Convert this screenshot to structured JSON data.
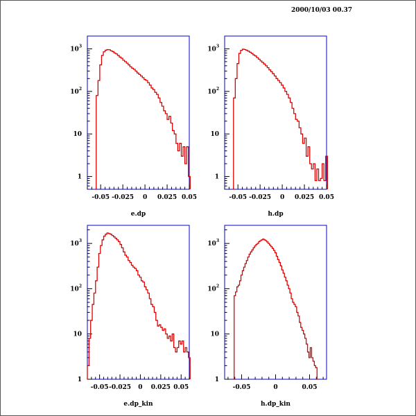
{
  "timestamp": "2000/10/03  00.37",
  "chart_data": [
    {
      "type": "line",
      "xlabel": "e.dp",
      "xlim": [
        -0.065,
        0.05
      ],
      "ylim_log10": [
        -0.3,
        3.3
      ],
      "xticks": [
        {
          "v": -0.05,
          "t": "-0.05"
        },
        {
          "v": -0.025,
          "t": "-0.025"
        },
        {
          "v": 0,
          "t": "0"
        },
        {
          "v": 0.025,
          "t": "0.025"
        },
        {
          "v": 0.05,
          "t": "0.05"
        }
      ],
      "yticks": [
        {
          "v": 1,
          "t": "1"
        },
        {
          "v": 10,
          "t": "10"
        },
        {
          "v": 100,
          "t": "10",
          "sup": "2"
        },
        {
          "v": 1000,
          "t": "10",
          "sup": "3"
        }
      ],
      "x": [
        -0.054,
        -0.052,
        -0.05,
        -0.048,
        -0.046,
        -0.044,
        -0.042,
        -0.04,
        -0.038,
        -0.036,
        -0.034,
        -0.032,
        -0.03,
        -0.028,
        -0.026,
        -0.024,
        -0.022,
        -0.02,
        -0.018,
        -0.016,
        -0.014,
        -0.012,
        -0.01,
        -0.008,
        -0.006,
        -0.004,
        -0.002,
        0,
        0.002,
        0.004,
        0.006,
        0.008,
        0.01,
        0.012,
        0.014,
        0.016,
        0.018,
        0.02,
        0.022,
        0.024,
        0.026,
        0.028,
        0.03,
        0.032,
        0.034,
        0.036,
        0.038,
        0.04,
        0.042,
        0.044,
        0.046,
        0.048,
        0.05
      ],
      "values": [
        80,
        180,
        420,
        700,
        850,
        930,
        960,
        950,
        900,
        860,
        800,
        760,
        700,
        640,
        600,
        540,
        500,
        460,
        420,
        380,
        350,
        330,
        300,
        270,
        250,
        230,
        210,
        190,
        180,
        160,
        140,
        120,
        110,
        95,
        85,
        70,
        55,
        45,
        35,
        30,
        22,
        26,
        18,
        12,
        10,
        6,
        4,
        6,
        3,
        5,
        2,
        5,
        1
      ]
    },
    {
      "type": "line",
      "xlabel": "h.dp",
      "xlim": [
        -0.065,
        0.05
      ],
      "ylim_log10": [
        -0.3,
        3.3
      ],
      "xticks": [
        {
          "v": -0.05,
          "t": "-0.05"
        },
        {
          "v": -0.025,
          "t": "-0.025"
        },
        {
          "v": 0,
          "t": "0"
        },
        {
          "v": 0.025,
          "t": "0.025"
        },
        {
          "v": 0.05,
          "t": "0.05"
        }
      ],
      "yticks": [
        {
          "v": 1,
          "t": "1"
        },
        {
          "v": 10,
          "t": "10"
        },
        {
          "v": 100,
          "t": "10",
          "sup": "2"
        },
        {
          "v": 1000,
          "t": "10",
          "sup": "3"
        }
      ],
      "x": [
        -0.054,
        -0.052,
        -0.05,
        -0.048,
        -0.046,
        -0.044,
        -0.042,
        -0.04,
        -0.038,
        -0.036,
        -0.034,
        -0.032,
        -0.03,
        -0.028,
        -0.026,
        -0.024,
        -0.022,
        -0.02,
        -0.018,
        -0.016,
        -0.014,
        -0.012,
        -0.01,
        -0.008,
        -0.006,
        -0.004,
        -0.002,
        0,
        0.002,
        0.004,
        0.006,
        0.008,
        0.01,
        0.012,
        0.014,
        0.016,
        0.018,
        0.02,
        0.022,
        0.024,
        0.026,
        0.028,
        0.03,
        0.032,
        0.034,
        0.036,
        0.038,
        0.04,
        0.042,
        0.044,
        0.046,
        0.048,
        0.05
      ],
      "values": [
        70,
        200,
        450,
        780,
        920,
        980,
        960,
        930,
        880,
        830,
        780,
        720,
        680,
        620,
        570,
        520,
        480,
        440,
        400,
        360,
        320,
        290,
        260,
        230,
        200,
        180,
        160,
        140,
        120,
        100,
        85,
        70,
        55,
        40,
        30,
        22,
        20,
        14,
        10,
        6,
        8,
        3,
        5,
        2,
        1.5,
        2,
        0.8,
        1.5,
        0.8,
        0.9,
        2,
        0.8,
        3
      ]
    },
    {
      "type": "line",
      "xlabel": "e.dp_kin",
      "xlim": [
        -0.065,
        0.06
      ],
      "ylim_log10": [
        0,
        3.4
      ],
      "xticks": [
        {
          "v": -0.05,
          "t": "-0.05"
        },
        {
          "v": -0.025,
          "t": "-0.025"
        },
        {
          "v": 0,
          "t": "0"
        },
        {
          "v": 0.025,
          "t": "0.025"
        },
        {
          "v": 0.05,
          "t": "0.05"
        }
      ],
      "yticks": [
        {
          "v": 1,
          "t": "1"
        },
        {
          "v": 10,
          "t": "10"
        },
        {
          "v": 100,
          "t": "10",
          "sup": "2"
        },
        {
          "v": 1000,
          "t": "10",
          "sup": "3"
        }
      ],
      "x": [
        -0.064,
        -0.062,
        -0.06,
        -0.058,
        -0.056,
        -0.054,
        -0.052,
        -0.05,
        -0.048,
        -0.046,
        -0.044,
        -0.042,
        -0.04,
        -0.038,
        -0.036,
        -0.034,
        -0.032,
        -0.03,
        -0.028,
        -0.026,
        -0.024,
        -0.022,
        -0.02,
        -0.018,
        -0.016,
        -0.014,
        -0.012,
        -0.01,
        -0.008,
        -0.006,
        -0.004,
        -0.002,
        0,
        0.002,
        0.004,
        0.006,
        0.008,
        0.01,
        0.012,
        0.014,
        0.016,
        0.018,
        0.02,
        0.022,
        0.024,
        0.026,
        0.028,
        0.03,
        0.032,
        0.034,
        0.036,
        0.038,
        0.04,
        0.042,
        0.044,
        0.046,
        0.048,
        0.05,
        0.052,
        0.054,
        0.056,
        0.058,
        0.06
      ],
      "values": [
        2,
        8,
        20,
        45,
        80,
        150,
        300,
        600,
        900,
        1200,
        1450,
        1600,
        1700,
        1650,
        1600,
        1500,
        1400,
        1300,
        1200,
        1100,
        950,
        800,
        650,
        550,
        500,
        420,
        380,
        330,
        300,
        280,
        250,
        200,
        180,
        150,
        140,
        110,
        95,
        80,
        60,
        45,
        40,
        30,
        20,
        15,
        16,
        14,
        12,
        13,
        10,
        8,
        9,
        7,
        10,
        5,
        4,
        5,
        7,
        6,
        7,
        4,
        5,
        4,
        3
      ]
    },
    {
      "type": "line",
      "xlabel": "h.dp_kin",
      "xlim": [
        -0.075,
        0.075
      ],
      "ylim_log10": [
        0,
        3.4
      ],
      "xticks": [
        {
          "v": -0.05,
          "t": "-0.05"
        },
        {
          "v": 0,
          "t": "0"
        },
        {
          "v": 0.05,
          "t": "0.05"
        }
      ],
      "yticks": [
        {
          "v": 1,
          "t": "1"
        },
        {
          "v": 10,
          "t": "10"
        },
        {
          "v": 100,
          "t": "10",
          "sup": "2"
        },
        {
          "v": 1000,
          "t": "10",
          "sup": "3"
        }
      ],
      "x": [
        -0.062,
        -0.06,
        -0.058,
        -0.056,
        -0.054,
        -0.052,
        -0.05,
        -0.048,
        -0.046,
        -0.044,
        -0.042,
        -0.04,
        -0.038,
        -0.036,
        -0.034,
        -0.032,
        -0.03,
        -0.028,
        -0.026,
        -0.024,
        -0.022,
        -0.02,
        -0.018,
        -0.016,
        -0.014,
        -0.012,
        -0.01,
        -0.008,
        -0.006,
        -0.004,
        -0.002,
        0,
        0.002,
        0.004,
        0.006,
        0.008,
        0.01,
        0.012,
        0.014,
        0.016,
        0.018,
        0.02,
        0.022,
        0.024,
        0.026,
        0.028,
        0.03,
        0.032,
        0.034,
        0.036,
        0.038,
        0.04,
        0.042,
        0.044,
        0.046,
        0.048,
        0.05,
        0.052,
        0.054,
        0.056,
        0.058,
        0.06,
        0.062
      ],
      "values": [
        1,
        70,
        85,
        110,
        120,
        150,
        200,
        250,
        300,
        360,
        420,
        500,
        580,
        650,
        720,
        800,
        880,
        950,
        1000,
        1100,
        1150,
        1200,
        1250,
        1200,
        1150,
        1080,
        1000,
        920,
        850,
        780,
        700,
        620,
        520,
        440,
        380,
        320,
        260,
        220,
        180,
        150,
        120,
        100,
        80,
        60,
        50,
        45,
        40,
        30,
        25,
        18,
        14,
        12,
        10,
        8,
        6,
        4,
        3,
        5,
        3,
        2.5,
        2,
        1.8,
        1
      ]
    }
  ]
}
